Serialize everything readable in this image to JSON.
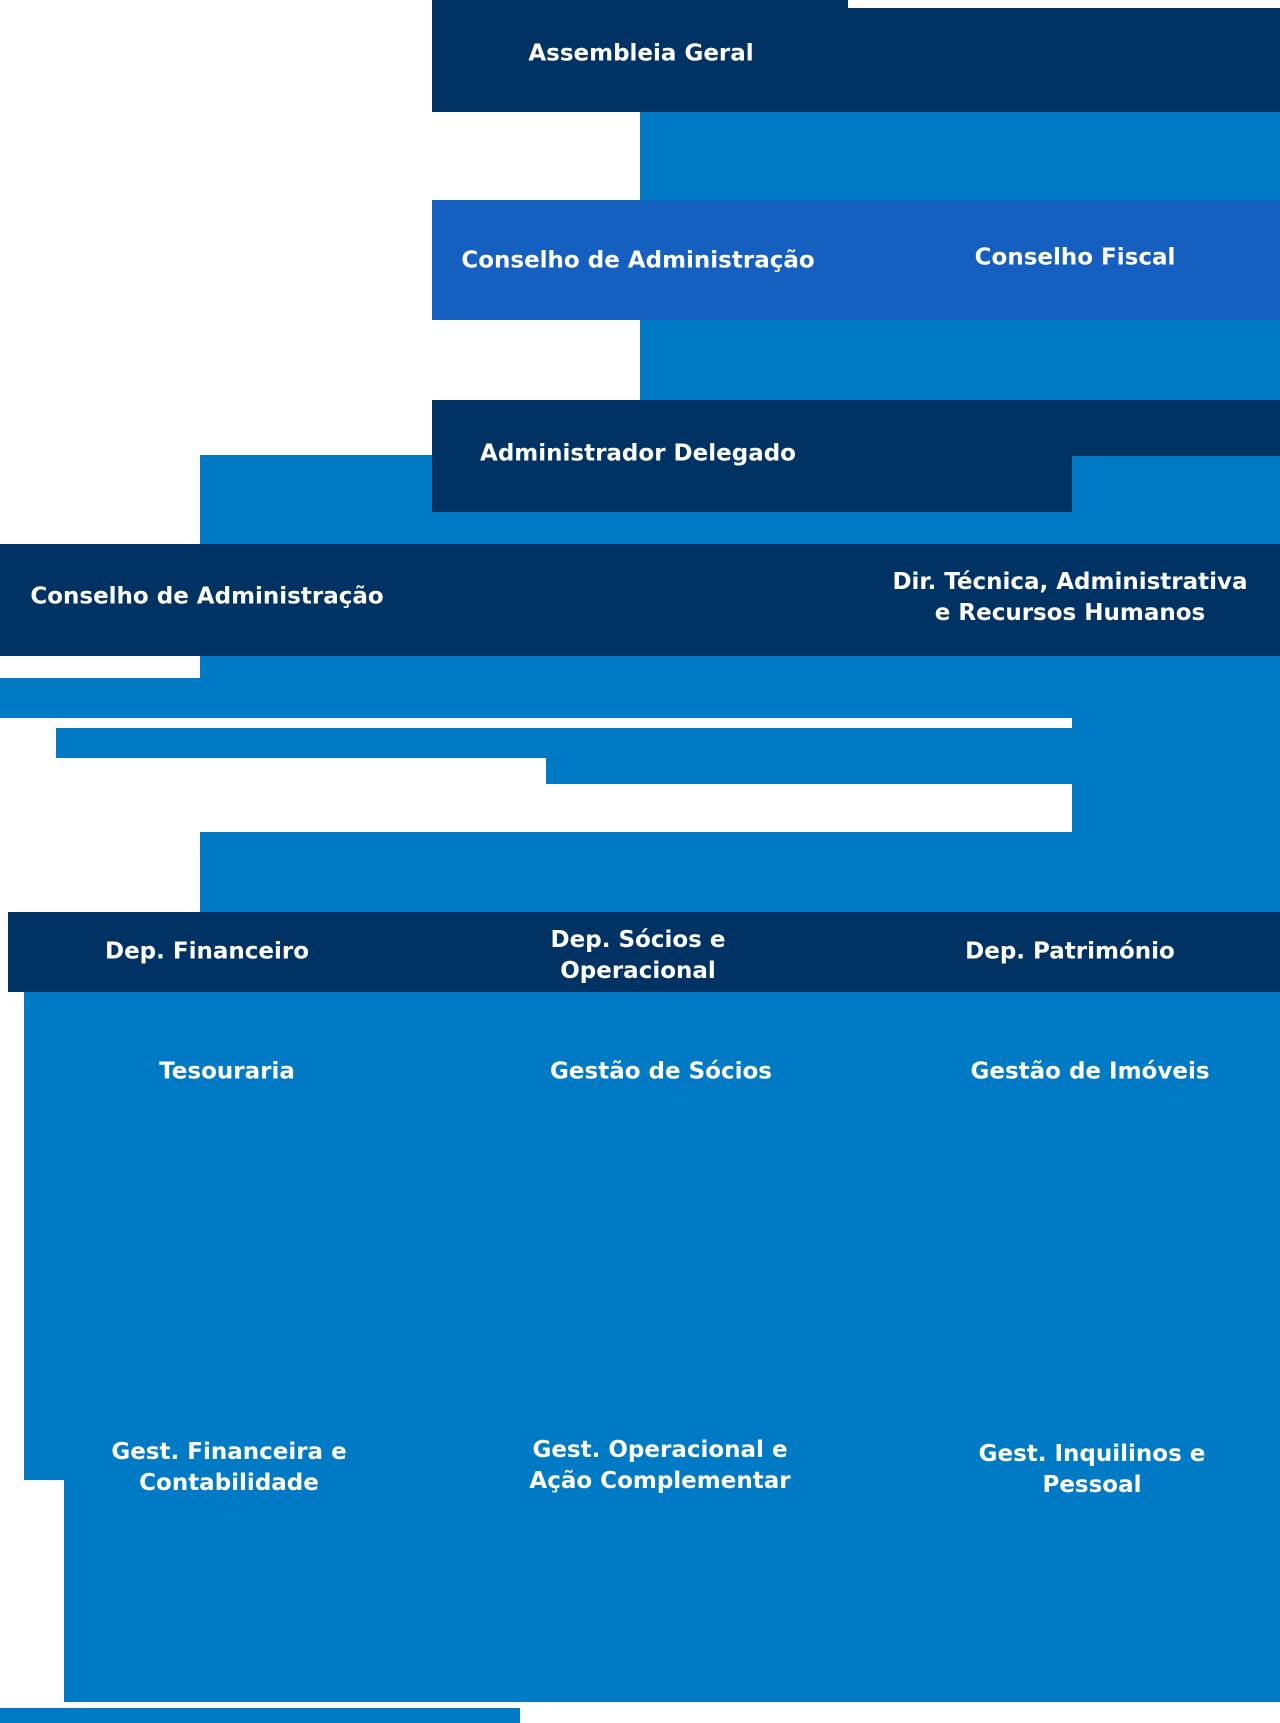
{
  "colors": {
    "background": "#ffffff",
    "dark_navy": "#013264",
    "mid_blue": "#007ac4",
    "bright_blue": "#145fbf",
    "text": "#ffffff"
  },
  "nodes": {
    "assembleia_geral": "Assembleia Geral",
    "conselho_administracao_top": "Conselho de Administração",
    "conselho_fiscal": "Conselho Fiscal",
    "administrador_delegado": "Administrador Delegado",
    "conselho_administracao_left": "Conselho de Administração",
    "dir_tecnica": [
      "Dir. Técnica, Administrativa",
      "e Recursos Humanos"
    ],
    "dep_financeiro": "Dep. Financeiro",
    "dep_socios": [
      "Dep. Sócios e",
      "Operacional"
    ],
    "dep_patrimonio": "Dep. Património",
    "tesouraria": "Tesouraria",
    "gestao_socios": "Gestão de Sócios",
    "gestao_imoveis": "Gestão de Imóveis",
    "gest_financeira": [
      "Gest. Financeira e",
      "Contabilidade"
    ],
    "gest_operacional": [
      "Gest. Operacional e",
      "Ação Complementar"
    ],
    "gest_inquilinos": [
      "Gest. Inquilinos e",
      "Pessoal"
    ]
  }
}
